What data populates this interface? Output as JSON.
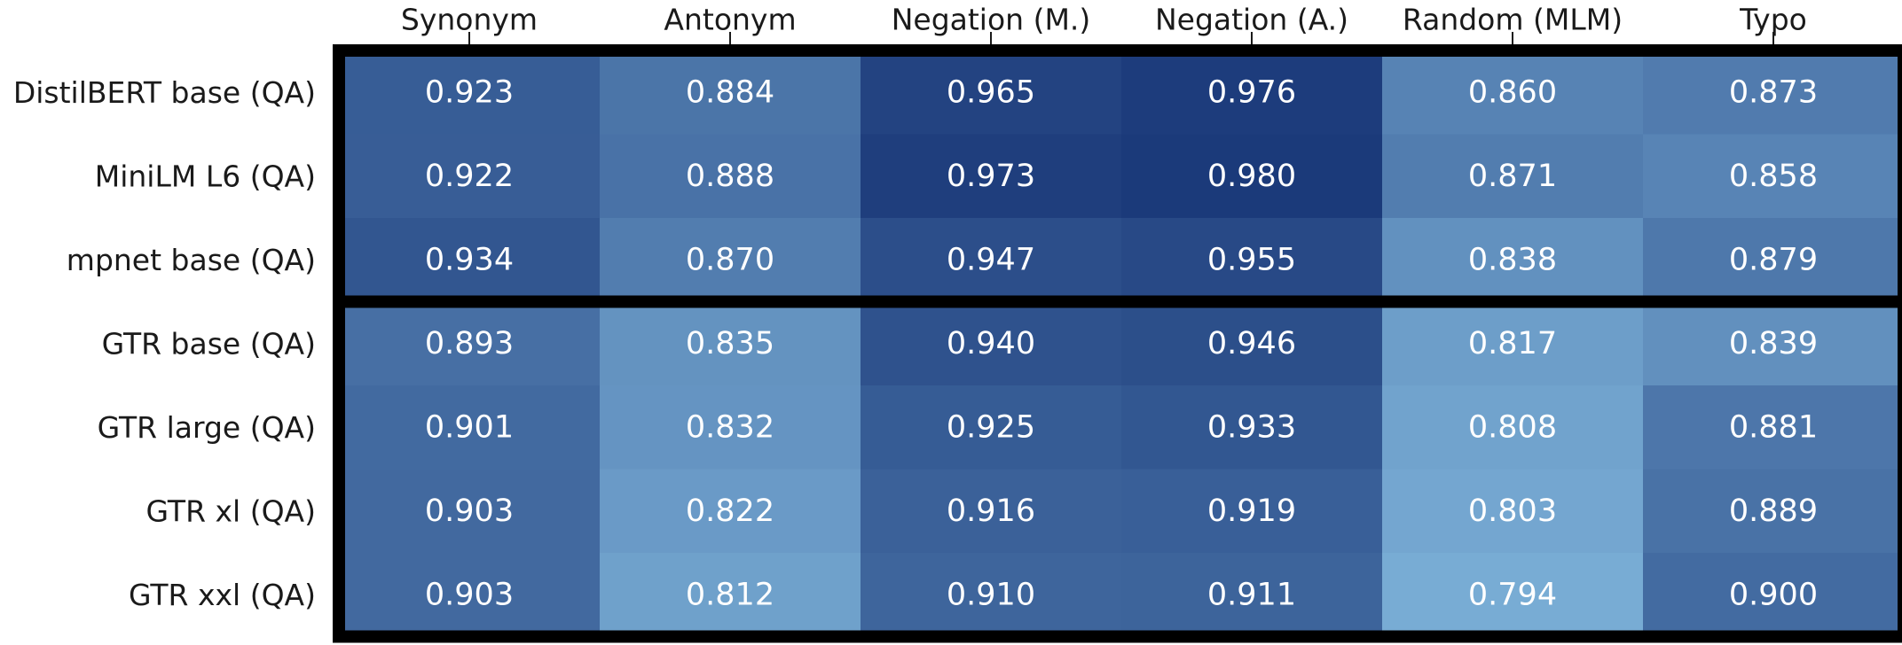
{
  "chart_data": {
    "type": "heatmap",
    "columns": [
      "Synonym",
      "Antonym",
      "Negation (M.)",
      "Negation (A.)",
      "Random (MLM)",
      "Typo"
    ],
    "rows": [
      "DistilBERT base (QA)",
      "MiniLM L6 (QA)",
      "mpnet base (QA)",
      "GTR base (QA)",
      "GTR large (QA)",
      "GTR xl (QA)",
      "GTR xxl (QA)"
    ],
    "values": [
      [
        0.923,
        0.884,
        0.965,
        0.976,
        0.86,
        0.873
      ],
      [
        0.922,
        0.888,
        0.973,
        0.98,
        0.871,
        0.858
      ],
      [
        0.934,
        0.87,
        0.947,
        0.955,
        0.838,
        0.879
      ],
      [
        0.893,
        0.835,
        0.94,
        0.946,
        0.817,
        0.839
      ],
      [
        0.901,
        0.832,
        0.925,
        0.933,
        0.808,
        0.881
      ],
      [
        0.903,
        0.822,
        0.916,
        0.919,
        0.803,
        0.889
      ],
      [
        0.903,
        0.812,
        0.91,
        0.911,
        0.794,
        0.9
      ]
    ],
    "value_labels": [
      [
        "0.923",
        "0.884",
        "0.965",
        "0.976",
        "0.860",
        "0.873"
      ],
      [
        "0.922",
        "0.888",
        "0.973",
        "0.980",
        "0.871",
        "0.858"
      ],
      [
        "0.934",
        "0.870",
        "0.947",
        "0.955",
        "0.838",
        "0.879"
      ],
      [
        "0.893",
        "0.835",
        "0.940",
        "0.946",
        "0.817",
        "0.839"
      ],
      [
        "0.901",
        "0.832",
        "0.925",
        "0.933",
        "0.808",
        "0.881"
      ],
      [
        "0.903",
        "0.822",
        "0.916",
        "0.919",
        "0.803",
        "0.889"
      ],
      [
        "0.903",
        "0.812",
        "0.910",
        "0.911",
        "0.794",
        "0.900"
      ]
    ],
    "groups": [
      {
        "rows": [
          0,
          1,
          2
        ]
      },
      {
        "rows": [
          3,
          4,
          5,
          6
        ]
      }
    ],
    "color_range": [
      0.79,
      0.98
    ],
    "colormap": {
      "low": "#7aaed6",
      "high": "#1b3a7a"
    },
    "cell_text_color": "#ffffff",
    "x_axis_position": "top",
    "grid": false
  }
}
